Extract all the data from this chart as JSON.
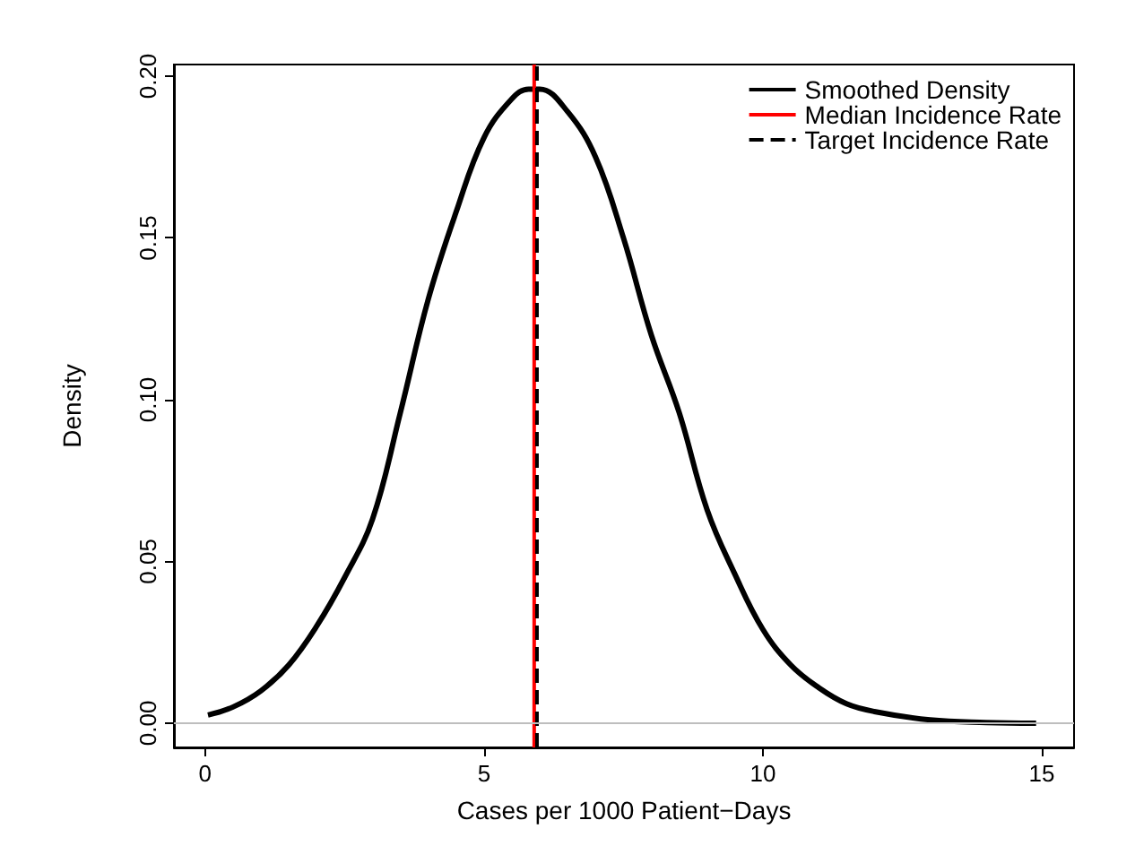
{
  "chart_data": {
    "type": "line",
    "xlabel": "Cases per 1000 Patient−Days",
    "ylabel": "Density",
    "xlim": [
      -0.56,
      15.58
    ],
    "ylim": [
      -0.0075,
      0.2036
    ],
    "xticks": [
      0,
      5,
      10,
      15
    ],
    "yticks": [
      {
        "value": 0,
        "label": "0.00"
      },
      {
        "value": 0.05,
        "label": "0.05"
      },
      {
        "value": 0.1,
        "label": "0.10"
      },
      {
        "value": 0.15,
        "label": "0.15"
      },
      {
        "value": 0.2,
        "label": "0.20"
      }
    ],
    "series": [
      {
        "name": "Smoothed Density",
        "color": "#000000",
        "x": [
          0.05,
          0.5,
          1,
          1.5,
          2,
          2.5,
          3,
          3.5,
          4,
          4.5,
          5,
          5.5,
          5.8,
          6,
          6.5,
          7,
          7.5,
          8,
          8.5,
          9,
          9.5,
          10,
          10.5,
          11,
          11.5,
          12,
          13,
          14,
          14.9
        ],
        "values": [
          0.0025,
          0.005,
          0.01,
          0.018,
          0.03,
          0.045,
          0.063,
          0.096,
          0.131,
          0.158,
          0.181,
          0.193,
          0.196,
          0.196,
          0.189,
          0.175,
          0.15,
          0.12,
          0.096,
          0.066,
          0.046,
          0.029,
          0.018,
          0.011,
          0.006,
          0.0036,
          0.001,
          0.0002,
          0
        ]
      },
      {
        "name": "Median Incidence Rate",
        "color": "#ff0000",
        "line_style": "solid",
        "x": [
          5.9,
          5.9
        ],
        "values": [
          -0.0075,
          0.2036
        ]
      },
      {
        "name": "Target Incidence Rate",
        "color": "#000000",
        "line_style": "dashed",
        "x": [
          5.95,
          5.95
        ],
        "values": [
          -0.0075,
          0.2036
        ]
      }
    ],
    "ref_lines": [
      {
        "axis": "y",
        "value": 0,
        "color": "#bebebe"
      }
    ],
    "legend": "top right",
    "grid": false,
    "marker": "none"
  }
}
